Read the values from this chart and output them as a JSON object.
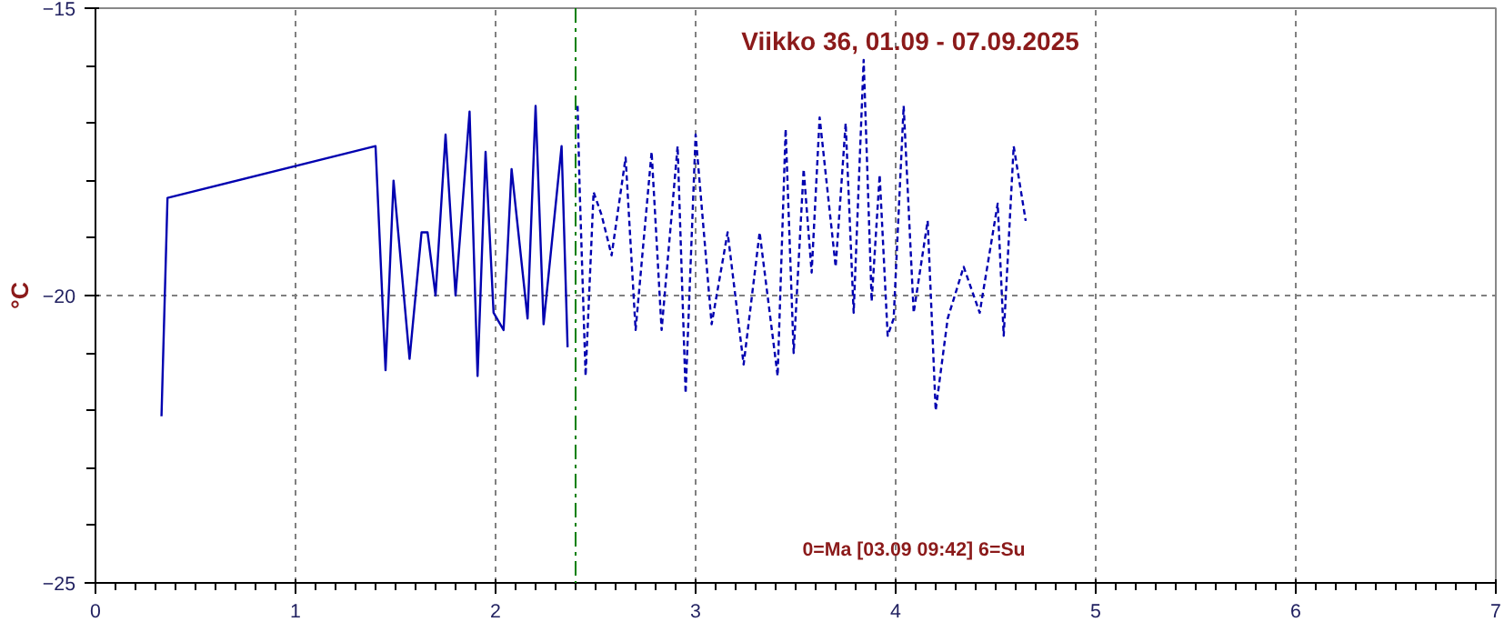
{
  "chart_data": {
    "type": "line",
    "title": "Viikko 36, 01.09 - 07.09.2025",
    "ylabel": "°C",
    "annotations": [
      "0=Ma [03.09 09:42] 6=Su"
    ],
    "xlim": [
      0,
      7
    ],
    "xticks": [
      0,
      1,
      2,
      3,
      4,
      5,
      6,
      7
    ],
    "ylim": [
      -25,
      -15
    ],
    "yticks": [
      -25,
      -20,
      -15
    ],
    "grid": true,
    "ref_lines": [
      {
        "axis": "x",
        "value": 2.4,
        "label": null,
        "color": "#008000",
        "line_style": "dashdot"
      }
    ],
    "series": [
      {
        "color": "#0000b0",
        "line_style": "solid",
        "x": [
          0.33,
          0.36,
          1.4,
          1.45,
          1.49,
          1.57,
          1.63,
          1.66,
          1.7,
          1.75,
          1.8,
          1.87,
          1.91,
          1.95,
          1.99,
          2.04,
          2.08,
          2.16,
          2.2,
          2.24,
          2.33,
          2.36
        ],
        "values": [
          -22.1,
          -18.3,
          -17.4,
          -21.3,
          -18.0,
          -21.1,
          -18.9,
          -18.9,
          -20.0,
          -17.2,
          -20.0,
          -16.8,
          -21.4,
          -17.5,
          -20.3,
          -20.6,
          -17.8,
          -20.4,
          -16.7,
          -20.5,
          -17.4,
          -20.9
        ]
      },
      {
        "color": "#0000b0",
        "line_style": "dashed",
        "x": [
          2.41,
          2.42,
          2.45,
          2.49,
          2.53,
          2.58,
          2.65,
          2.7,
          2.78,
          2.83,
          2.91,
          2.95,
          3.0,
          3.08,
          3.16,
          3.24,
          3.32,
          3.41,
          3.45,
          3.49,
          3.54,
          3.58,
          3.62,
          3.7,
          3.75,
          3.79,
          3.84,
          3.88,
          3.92,
          3.96,
          3.99,
          4.04,
          4.09,
          4.16,
          4.2,
          4.26,
          4.34,
          4.42,
          4.51,
          4.54,
          4.59,
          4.65
        ],
        "values": [
          -16.7,
          -18.1,
          -21.4,
          -18.2,
          -18.6,
          -19.3,
          -17.6,
          -20.6,
          -17.5,
          -20.6,
          -17.4,
          -21.7,
          -17.2,
          -20.5,
          -18.9,
          -21.2,
          -18.9,
          -21.4,
          -17.1,
          -21.0,
          -17.8,
          -19.6,
          -16.9,
          -19.5,
          -17.0,
          -20.3,
          -15.9,
          -20.1,
          -17.9,
          -20.7,
          -20.4,
          -16.7,
          -20.3,
          -18.7,
          -22.0,
          -20.4,
          -19.5,
          -20.3,
          -18.4,
          -20.7,
          -17.4,
          -18.7
        ]
      }
    ]
  }
}
